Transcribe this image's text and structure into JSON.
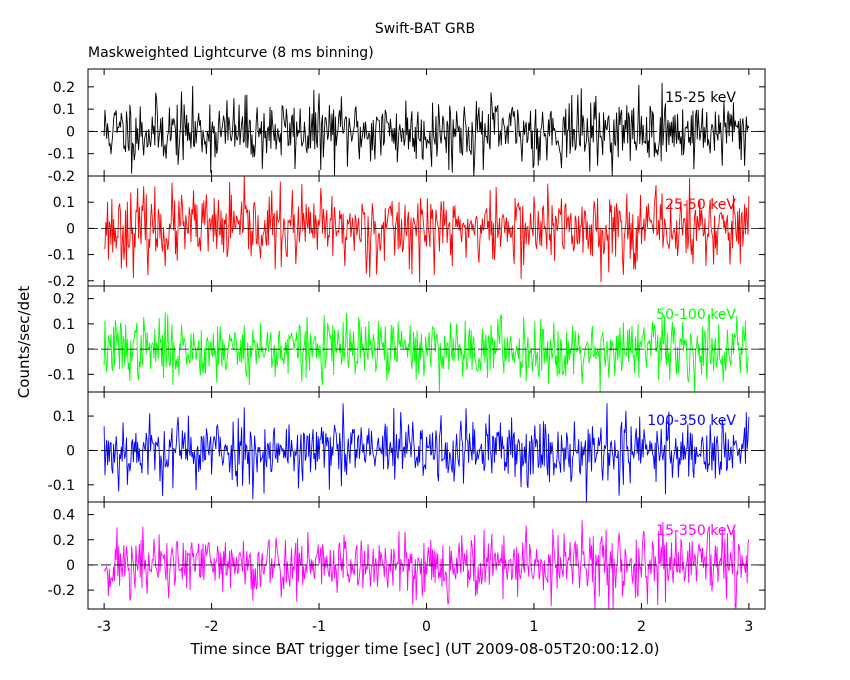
{
  "title": "Swift-BAT GRB",
  "subtitle": "Maskweighted Lightcurve (8 ms binning)",
  "xlabel": "Time since BAT trigger time [sec] (UT 2009-08-05T20:00:12.0)",
  "ylabel": "Counts/sec/det",
  "chart_data": {
    "type": "line",
    "xlim": [
      -3.15,
      3.15
    ],
    "x_ticks": [
      -3,
      -2,
      -1,
      0,
      1,
      2,
      3
    ],
    "x_tick_labels": [
      "-3",
      "-2",
      "-1",
      "0",
      "1",
      "2",
      "3"
    ],
    "x_range": [
      -3.0,
      3.0
    ],
    "bin_width": 0.008,
    "panels": [
      {
        "name": "15-25 keV",
        "color": "#000000",
        "ylim": [
          -0.2,
          0.28
        ],
        "y_ticks": [
          -0.2,
          -0.1,
          0,
          0.1,
          0.2
        ],
        "y_tick_labels": [
          "-0.2",
          "-0.1",
          "0",
          "0.1",
          "0.2"
        ],
        "noise_sigma": 0.075,
        "seed": 11
      },
      {
        "name": "25-50 keV",
        "color": "#ff0000",
        "ylim": [
          -0.22,
          0.2
        ],
        "y_ticks": [
          -0.2,
          -0.1,
          0,
          0.1
        ],
        "y_tick_labels": [
          "-0.2",
          "-0.1",
          "0",
          "0.1"
        ],
        "noise_sigma": 0.07,
        "seed": 23
      },
      {
        "name": "50-100 keV",
        "color": "#00ff00",
        "ylim": [
          -0.17,
          0.25
        ],
        "y_ticks": [
          -0.1,
          0,
          0.1,
          0.2
        ],
        "y_tick_labels": [
          "-0.1",
          "0",
          "0.1",
          "0.2"
        ],
        "noise_sigma": 0.06,
        "seed": 37
      },
      {
        "name": "100-350 keV",
        "color": "#0000ff",
        "ylim": [
          -0.15,
          0.17
        ],
        "y_ticks": [
          -0.1,
          0,
          0.1
        ],
        "y_tick_labels": [
          "-0.1",
          "0",
          "0.1"
        ],
        "noise_sigma": 0.05,
        "seed": 53
      },
      {
        "name": "15-350 keV",
        "color": "#ff00ff",
        "ylim": [
          -0.35,
          0.5
        ],
        "y_ticks": [
          -0.2,
          0,
          0.2,
          0.4
        ],
        "y_tick_labels": [
          "-0.2",
          "0",
          "0.2",
          "0.4"
        ],
        "noise_sigma": 0.13,
        "seed": 71
      }
    ]
  }
}
